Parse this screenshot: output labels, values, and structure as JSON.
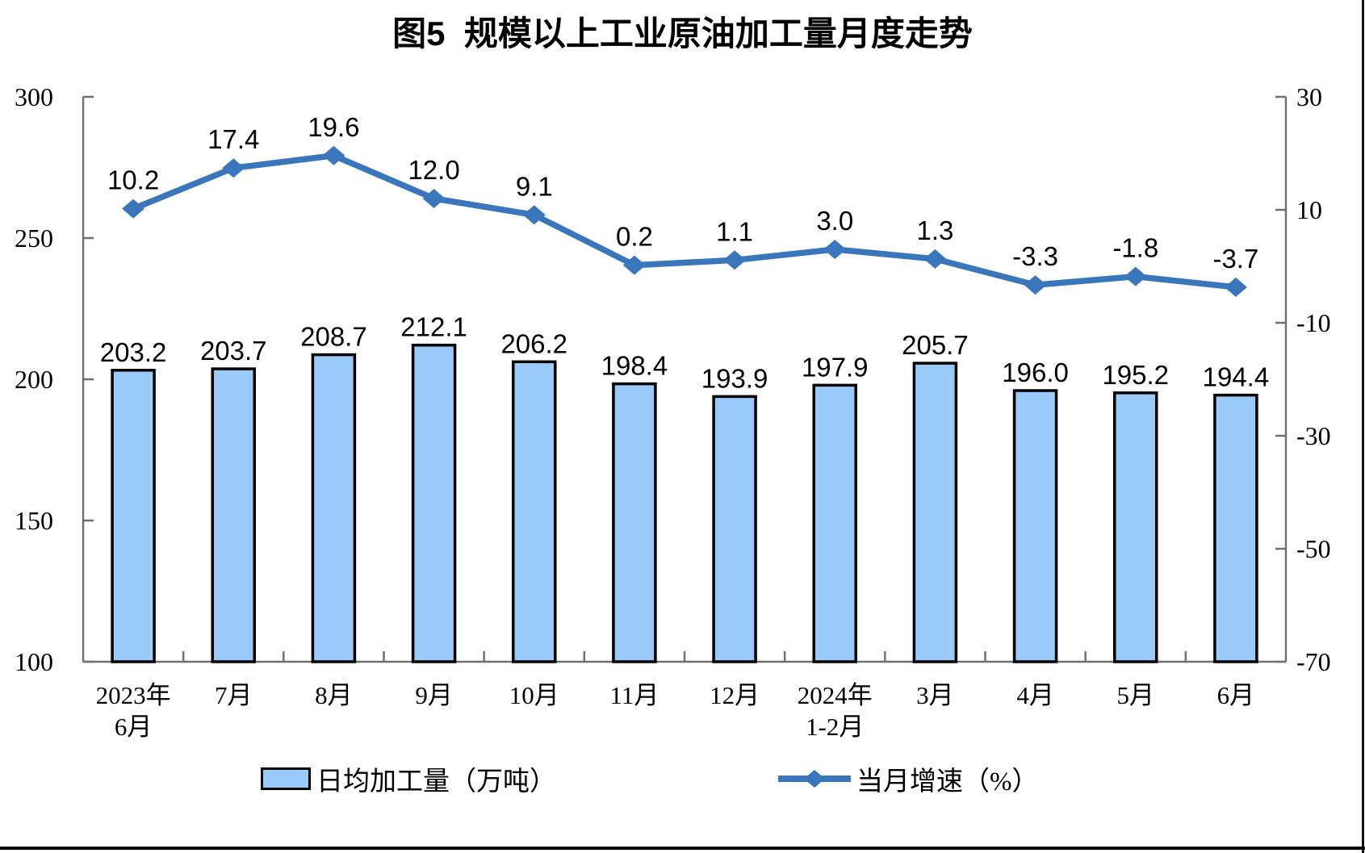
{
  "chart_data": {
    "type": "bar+line",
    "title": "图5  规模以上工业原油加工量月度走势",
    "categories": [
      [
        "2023年",
        "6月"
      ],
      [
        "7月"
      ],
      [
        "8月"
      ],
      [
        "9月"
      ],
      [
        "10月"
      ],
      [
        "11月"
      ],
      [
        "12月"
      ],
      [
        "2024年",
        "1-2月"
      ],
      [
        "3月"
      ],
      [
        "4月"
      ],
      [
        "5月"
      ],
      [
        "6月"
      ]
    ],
    "series": [
      {
        "name": "日均加工量（万吨）",
        "type": "bar",
        "axis": "left",
        "values": [
          203.2,
          203.7,
          208.7,
          212.1,
          206.2,
          198.4,
          193.9,
          197.9,
          205.7,
          196.0,
          195.2,
          194.4
        ],
        "color": "#99CAF9",
        "border_color": "#000000"
      },
      {
        "name": "当月增速（%）",
        "type": "line",
        "axis": "right",
        "values": [
          10.2,
          17.4,
          19.6,
          12.0,
          9.1,
          0.2,
          1.1,
          3.0,
          1.3,
          -3.3,
          -1.8,
          -3.7
        ],
        "color": "#3A76BC",
        "marker": "diamond"
      }
    ],
    "left_axis": {
      "min": 100,
      "max": 300,
      "ticks": [
        300,
        250,
        200,
        150,
        100
      ]
    },
    "right_axis": {
      "min": -70,
      "max": 30,
      "ticks": [
        30,
        10,
        -10,
        -30,
        -50,
        -70
      ]
    },
    "grid": "off",
    "legend_position": "bottom",
    "axis_color": "#707070",
    "label_color": "#000000"
  }
}
